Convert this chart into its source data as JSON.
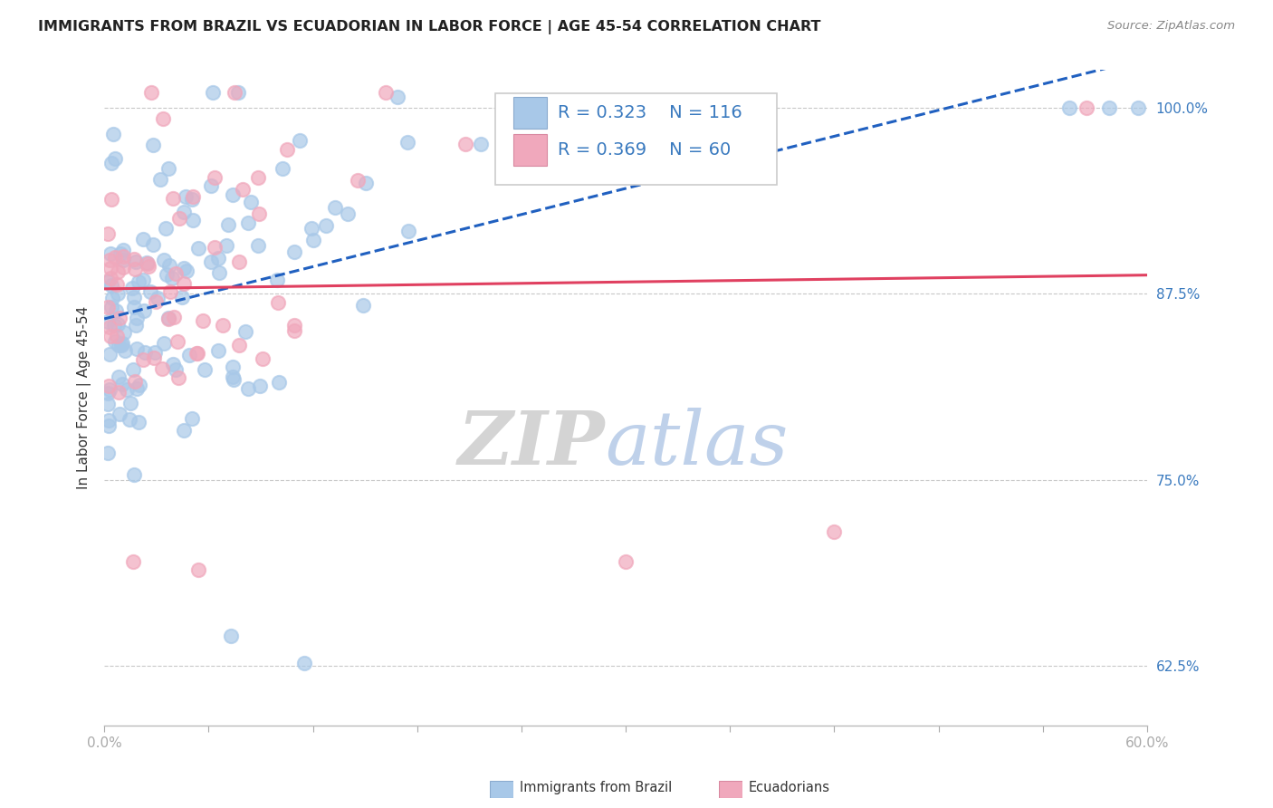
{
  "title": "IMMIGRANTS FROM BRAZIL VS ECUADORIAN IN LABOR FORCE | AGE 45-54 CORRELATION CHART",
  "source_text": "Source: ZipAtlas.com",
  "ylabel": "In Labor Force | Age 45-54",
  "xlim": [
    0.0,
    0.6
  ],
  "ylim": [
    0.585,
    1.025
  ],
  "ytick_labels": [
    "62.5%",
    "75.0%",
    "87.5%",
    "100.0%"
  ],
  "yticks": [
    0.625,
    0.75,
    0.875,
    1.0
  ],
  "blue_color": "#a8c8e8",
  "pink_color": "#f0a8bc",
  "blue_line_color": "#2060c0",
  "pink_line_color": "#e04060",
  "legend_R_blue": "0.323",
  "legend_N_blue": "116",
  "legend_R_pink": "0.369",
  "legend_N_pink": "60",
  "title_fontsize": 11.5,
  "axis_label_fontsize": 11,
  "tick_fontsize": 11,
  "legend_fontsize": 14
}
